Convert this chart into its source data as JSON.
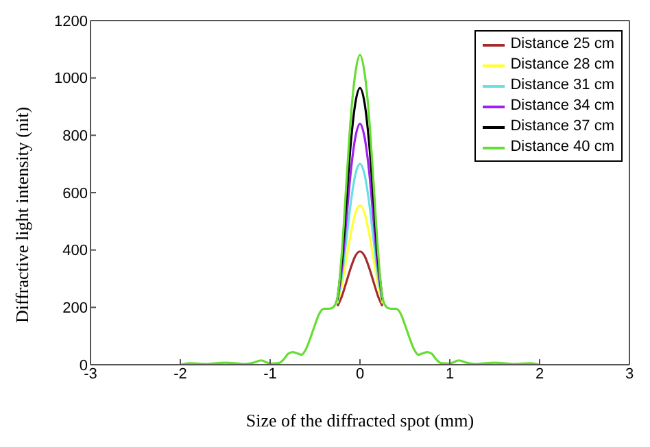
{
  "chart_data": {
    "type": "line",
    "xlabel": "Size of the diffracted spot (mm)",
    "ylabel": "Diffractive light intensity (nit)",
    "x": [
      -2,
      -1.9,
      -1.7,
      -1.5,
      -1.3,
      -1.2,
      -1.1,
      -1,
      -0.9,
      -0.85,
      -0.8,
      -0.75,
      -0.7,
      -0.65,
      -0.6,
      -0.55,
      -0.5,
      -0.45,
      -0.4,
      -0.35,
      -0.3,
      -0.25,
      -0.2,
      -0.15,
      -0.1,
      -0.05,
      0,
      0.05,
      0.1,
      0.15,
      0.2,
      0.25,
      0.3,
      0.35,
      0.4,
      0.45,
      0.5,
      0.55,
      0.6,
      0.65,
      0.7,
      0.75,
      0.8,
      0.85,
      0.9,
      1,
      1.1,
      1.2,
      1.3,
      1.5,
      1.7,
      1.9,
      2
    ],
    "series": [
      {
        "name": "Distance 25 cm",
        "color": "#a52a2a",
        "values": [
          null,
          null,
          null,
          null,
          null,
          null,
          null,
          null,
          null,
          null,
          null,
          null,
          null,
          null,
          null,
          null,
          null,
          null,
          null,
          null,
          null,
          205,
          240,
          290,
          340,
          380,
          395,
          380,
          340,
          290,
          240,
          205,
          null,
          null,
          null,
          null,
          null,
          null,
          null,
          null,
          null,
          null,
          null,
          null,
          null,
          null,
          null,
          null,
          null,
          null,
          null,
          null,
          null
        ]
      },
      {
        "name": "Distance 28 cm",
        "color": "#ffff33",
        "values": [
          null,
          null,
          null,
          null,
          null,
          null,
          null,
          null,
          null,
          null,
          null,
          null,
          null,
          null,
          null,
          null,
          null,
          null,
          null,
          null,
          null,
          215,
          280,
          370,
          460,
          530,
          555,
          530,
          460,
          370,
          280,
          215,
          null,
          null,
          null,
          null,
          null,
          null,
          null,
          null,
          null,
          null,
          null,
          null,
          null,
          null,
          null,
          null,
          null,
          null,
          null,
          null,
          null
        ]
      },
      {
        "name": "Distance 31 cm",
        "color": "#66e0e0",
        "values": [
          null,
          null,
          null,
          null,
          null,
          null,
          null,
          null,
          null,
          null,
          null,
          null,
          null,
          null,
          null,
          null,
          null,
          null,
          null,
          null,
          null,
          220,
          310,
          440,
          570,
          665,
          700,
          665,
          570,
          440,
          310,
          220,
          null,
          null,
          null,
          null,
          null,
          null,
          null,
          null,
          null,
          null,
          null,
          null,
          null,
          null,
          null,
          null,
          null,
          null,
          null,
          null,
          null
        ]
      },
      {
        "name": "Distance 34 cm",
        "color": "#a020f0",
        "values": [
          null,
          null,
          null,
          null,
          null,
          null,
          null,
          null,
          null,
          null,
          null,
          null,
          null,
          null,
          null,
          null,
          null,
          null,
          null,
          null,
          null,
          225,
          340,
          510,
          680,
          795,
          840,
          795,
          680,
          510,
          340,
          225,
          null,
          null,
          null,
          null,
          null,
          null,
          null,
          null,
          null,
          null,
          null,
          null,
          null,
          null,
          null,
          null,
          null,
          null,
          null,
          null,
          null
        ]
      },
      {
        "name": "Distance 37 cm",
        "color": "#000000",
        "values": [
          null,
          null,
          null,
          null,
          null,
          null,
          null,
          null,
          null,
          null,
          null,
          null,
          null,
          null,
          null,
          null,
          null,
          null,
          null,
          null,
          null,
          230,
          370,
          580,
          780,
          915,
          965,
          915,
          780,
          580,
          370,
          230,
          null,
          null,
          null,
          null,
          null,
          null,
          null,
          null,
          null,
          null,
          null,
          null,
          null,
          null,
          null,
          null,
          null,
          null,
          null,
          null,
          null
        ]
      },
      {
        "name": "Distance 40 cm",
        "color": "#66dd33",
        "values": [
          0,
          5,
          3,
          7,
          3,
          6,
          15,
          4,
          6,
          18,
          38,
          44,
          40,
          35,
          55,
          95,
          140,
          180,
          195,
          195,
          200,
          235,
          400,
          640,
          870,
          1020,
          1080,
          1020,
          870,
          640,
          400,
          235,
          200,
          195,
          195,
          180,
          140,
          95,
          55,
          35,
          40,
          44,
          38,
          18,
          6,
          4,
          15,
          6,
          3,
          7,
          3,
          5,
          0
        ]
      }
    ],
    "xlim": [
      -3,
      3
    ],
    "xticks": [
      -3,
      -2,
      -1,
      0,
      1,
      2,
      3
    ],
    "ylim": [
      0,
      1200
    ],
    "yticks": [
      0,
      200,
      400,
      600,
      800,
      1000,
      1200
    ],
    "grid": false,
    "legend": "top right"
  }
}
